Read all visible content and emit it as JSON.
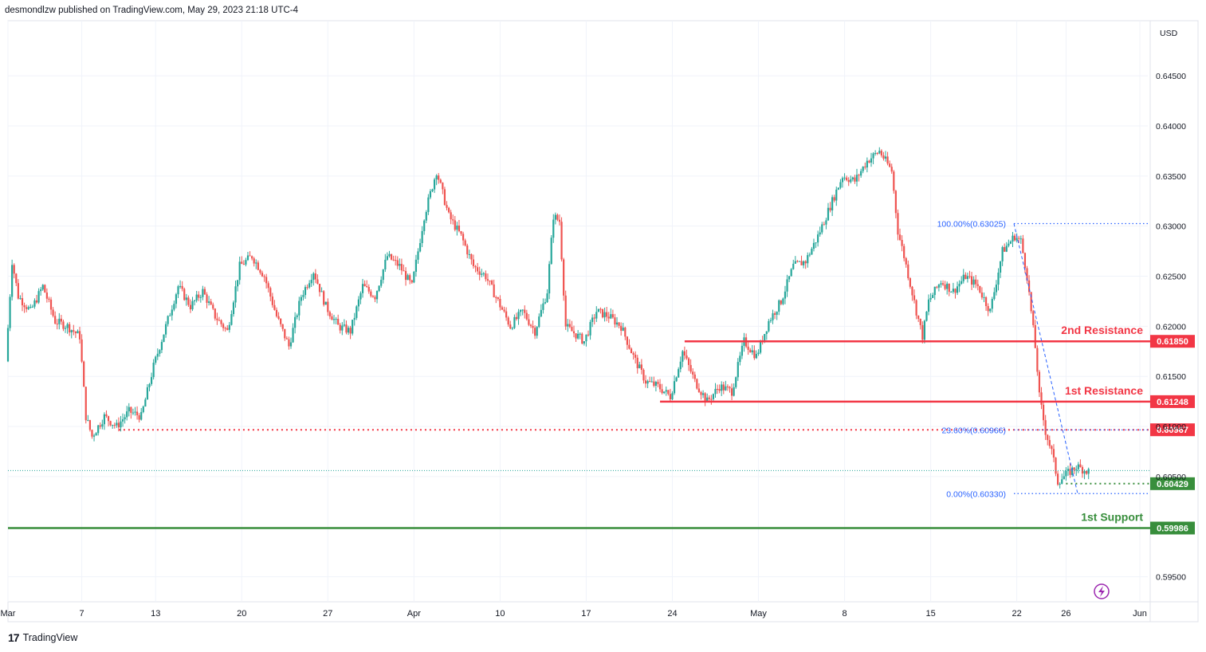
{
  "header": {
    "published_text": "desmondlzw published on TradingView.com, May 29, 2023 21:18 UTC-4"
  },
  "footer": {
    "brand": "TradingView",
    "logo_text": "17"
  },
  "chart_data": {
    "type": "candlestick",
    "currency": "USD",
    "ylim": [
      0.5925,
      0.6505
    ],
    "y_ticks": [
      "0.64500",
      "0.64000",
      "0.63500",
      "0.63000",
      "0.62500",
      "0.62000",
      "0.61500",
      "0.61000",
      "0.60500",
      "0.59500"
    ],
    "x_ticks": [
      {
        "label": "Mar",
        "date": "2023-03-01"
      },
      {
        "label": "7",
        "date": "2023-03-07"
      },
      {
        "label": "13",
        "date": "2023-03-13"
      },
      {
        "label": "20",
        "date": "2023-03-20"
      },
      {
        "label": "27",
        "date": "2023-03-27"
      },
      {
        "label": "Apr",
        "date": "2023-04-03"
      },
      {
        "label": "10",
        "date": "2023-04-10"
      },
      {
        "label": "17",
        "date": "2023-04-17"
      },
      {
        "label": "24",
        "date": "2023-04-24"
      },
      {
        "label": "May",
        "date": "2023-05-01"
      },
      {
        "label": "8",
        "date": "2023-05-08"
      },
      {
        "label": "15",
        "date": "2023-05-15"
      },
      {
        "label": "22",
        "date": "2023-05-22"
      },
      {
        "label": "26",
        "date": "2023-05-26"
      },
      {
        "label": "Jun",
        "date": "2023-06-01"
      }
    ],
    "price_path": [
      [
        "2023-03-01",
        0.6165
      ],
      [
        "2023-03-01 12:00",
        0.6265
      ],
      [
        "2023-03-02",
        0.623
      ],
      [
        "2023-03-03",
        0.6215
      ],
      [
        "2023-03-04",
        0.624
      ],
      [
        "2023-03-05",
        0.6205
      ],
      [
        "2023-03-06",
        0.62
      ],
      [
        "2023-03-07",
        0.619
      ],
      [
        "2023-03-07 12:00",
        0.611
      ],
      [
        "2023-03-08",
        0.609
      ],
      [
        "2023-03-09",
        0.611
      ],
      [
        "2023-03-10",
        0.61
      ],
      [
        "2023-03-11",
        0.6115
      ],
      [
        "2023-03-12",
        0.611
      ],
      [
        "2023-03-13",
        0.616
      ],
      [
        "2023-03-14",
        0.62
      ],
      [
        "2023-03-15",
        0.624
      ],
      [
        "2023-03-16",
        0.622
      ],
      [
        "2023-03-17",
        0.6235
      ],
      [
        "2023-03-18",
        0.621
      ],
      [
        "2023-03-19",
        0.6195
      ],
      [
        "2023-03-20",
        0.626
      ],
      [
        "2023-03-21",
        0.627
      ],
      [
        "2023-03-22",
        0.625
      ],
      [
        "2023-03-23",
        0.621
      ],
      [
        "2023-03-24",
        0.618
      ],
      [
        "2023-03-25",
        0.623
      ],
      [
        "2023-03-26",
        0.6255
      ],
      [
        "2023-03-27",
        0.622
      ],
      [
        "2023-03-28",
        0.62
      ],
      [
        "2023-03-29",
        0.6195
      ],
      [
        "2023-03-30",
        0.624
      ],
      [
        "2023-03-31",
        0.623
      ],
      [
        "2023-04-01",
        0.627
      ],
      [
        "2023-04-02",
        0.626
      ],
      [
        "2023-04-03",
        0.624
      ],
      [
        "2023-04-04",
        0.631
      ],
      [
        "2023-04-05",
        0.6355
      ],
      [
        "2023-04-06",
        0.631
      ],
      [
        "2023-04-07",
        0.629
      ],
      [
        "2023-04-08",
        0.626
      ],
      [
        "2023-04-09",
        0.625
      ],
      [
        "2023-04-10",
        0.6225
      ],
      [
        "2023-04-11",
        0.62
      ],
      [
        "2023-04-12",
        0.6215
      ],
      [
        "2023-04-13",
        0.6195
      ],
      [
        "2023-04-14",
        0.6235
      ],
      [
        "2023-04-14 12:00",
        0.631
      ],
      [
        "2023-04-15",
        0.6305
      ],
      [
        "2023-04-15 12:00",
        0.62
      ],
      [
        "2023-04-16",
        0.6195
      ],
      [
        "2023-04-17",
        0.6185
      ],
      [
        "2023-04-18",
        0.6215
      ],
      [
        "2023-04-19",
        0.621
      ],
      [
        "2023-04-20",
        0.62
      ],
      [
        "2023-04-21",
        0.617
      ],
      [
        "2023-04-22",
        0.6145
      ],
      [
        "2023-04-23",
        0.614
      ],
      [
        "2023-04-24",
        0.613
      ],
      [
        "2023-04-25",
        0.6175
      ],
      [
        "2023-04-26",
        0.6145
      ],
      [
        "2023-04-27",
        0.6125
      ],
      [
        "2023-04-28",
        0.614
      ],
      [
        "2023-04-29",
        0.6135
      ],
      [
        "2023-04-30",
        0.6185
      ],
      [
        "2023-05-01",
        0.617
      ],
      [
        "2023-05-02",
        0.6205
      ],
      [
        "2023-05-03",
        0.6225
      ],
      [
        "2023-05-04",
        0.626
      ],
      [
        "2023-05-05",
        0.6265
      ],
      [
        "2023-05-06",
        0.629
      ],
      [
        "2023-05-07",
        0.632
      ],
      [
        "2023-05-08",
        0.635
      ],
      [
        "2023-05-09",
        0.6345
      ],
      [
        "2023-05-10",
        0.6365
      ],
      [
        "2023-05-11",
        0.6375
      ],
      [
        "2023-05-12",
        0.6355
      ],
      [
        "2023-05-12 12:00",
        0.6295
      ],
      [
        "2023-05-13",
        0.627
      ],
      [
        "2023-05-14",
        0.6215
      ],
      [
        "2023-05-14 12:00",
        0.619
      ],
      [
        "2023-05-15",
        0.6225
      ],
      [
        "2023-05-16",
        0.6245
      ],
      [
        "2023-05-17",
        0.6235
      ],
      [
        "2023-05-18",
        0.625
      ],
      [
        "2023-05-19",
        0.624
      ],
      [
        "2023-05-20",
        0.6215
      ],
      [
        "2023-05-21",
        0.6275
      ],
      [
        "2023-05-22",
        0.629
      ],
      [
        "2023-05-22 12:00",
        0.6285
      ],
      [
        "2023-05-23",
        0.625
      ],
      [
        "2023-05-23 18:00",
        0.617
      ],
      [
        "2023-05-24",
        0.613
      ],
      [
        "2023-05-24 12:00",
        0.6095
      ],
      [
        "2023-05-25",
        0.6075
      ],
      [
        "2023-05-25 12:00",
        0.6045
      ],
      [
        "2023-05-26",
        0.605
      ],
      [
        "2023-05-26 12:00",
        0.6055
      ],
      [
        "2023-05-27",
        0.606
      ],
      [
        "2023-05-28",
        0.6055
      ]
    ],
    "levels": [
      {
        "name": "2nd Resistance",
        "value": 0.6185,
        "label": "0.61850",
        "color": "#f23645",
        "from": "2023-04-25"
      },
      {
        "name": "1st Resistance",
        "value": 0.61248,
        "label": "0.61248",
        "color": "#f23645",
        "from": "2023-04-23"
      },
      {
        "name": "",
        "value": 0.60967,
        "label": "0.60967",
        "color": "#f23645",
        "from": "2023-03-10",
        "dotted": true
      },
      {
        "name": "",
        "value": 0.60429,
        "label": "0.60429",
        "color": "#388e3c",
        "from": "2023-05-26",
        "dotted": true
      },
      {
        "name": "1st Support",
        "value": 0.59986,
        "label": "0.59986",
        "color": "#388e3c",
        "from": "2023-03-01"
      }
    ],
    "fibonacci": [
      {
        "label": "100.00%(0.63025)",
        "value": 0.63025
      },
      {
        "label": "23.60%(0.60966)",
        "value": 0.60966
      },
      {
        "label": "0.00%(0.60330)",
        "value": 0.6033
      }
    ],
    "current_price_line": 0.6056,
    "colors": {
      "up": "#26a69a",
      "down": "#ef5350",
      "resistance": "#f23645",
      "support": "#388e3c",
      "fib": "#2962ff",
      "grid": "#f0f3fa",
      "axis_text": "#131722"
    },
    "grid": true,
    "icons": {
      "lightning": "lightning-icon"
    }
  }
}
